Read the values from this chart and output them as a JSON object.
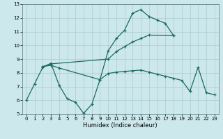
{
  "title": "",
  "xlabel": "Humidex (Indice chaleur)",
  "bg_color": "#cce8ec",
  "grid_color": "#aacccc",
  "line_color": "#1a6b60",
  "xlim": [
    -0.5,
    23.5
  ],
  "ylim": [
    5,
    13
  ],
  "yticks": [
    5,
    6,
    7,
    8,
    9,
    10,
    11,
    12,
    13
  ],
  "xticks": [
    0,
    1,
    2,
    3,
    4,
    5,
    6,
    7,
    8,
    9,
    10,
    11,
    12,
    13,
    14,
    15,
    16,
    17,
    18,
    19,
    20,
    21,
    22,
    23
  ],
  "series1_x": [
    0,
    1,
    2,
    3,
    4,
    5,
    6,
    7,
    8,
    9,
    10,
    11,
    12,
    13,
    14,
    15,
    16,
    17,
    18
  ],
  "series1_y": [
    6.0,
    7.2,
    8.4,
    8.7,
    7.1,
    6.1,
    5.85,
    5.05,
    5.7,
    7.5,
    9.6,
    10.5,
    11.1,
    12.35,
    12.6,
    12.1,
    11.85,
    11.6,
    10.7
  ],
  "series2_x": [
    2,
    3,
    10,
    11,
    12,
    13,
    14,
    15,
    18
  ],
  "series2_y": [
    8.45,
    8.65,
    9.0,
    9.55,
    9.9,
    10.25,
    10.5,
    10.75,
    10.7
  ],
  "series3_x": [
    2,
    3,
    4,
    9,
    10,
    11,
    12,
    13,
    14,
    15,
    16,
    17,
    18,
    19,
    20,
    21,
    22,
    23
  ],
  "series3_y": [
    8.45,
    8.55,
    8.35,
    7.5,
    7.95,
    8.05,
    8.1,
    8.15,
    8.2,
    8.05,
    7.9,
    7.75,
    7.6,
    7.45,
    6.65,
    8.4,
    6.55,
    6.4
  ]
}
